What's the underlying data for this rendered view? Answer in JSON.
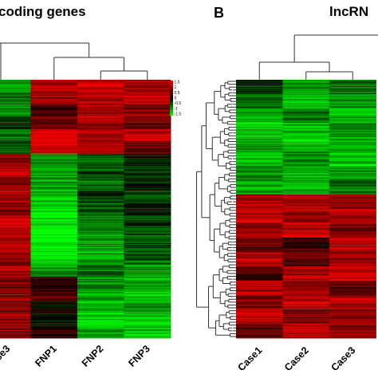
{
  "chart_data": [
    {
      "type": "heatmap",
      "title": "coding genes",
      "columns": [
        "se3",
        "FNP1",
        "FNP2",
        "FNP3"
      ],
      "legend": {
        "ticks": [
          "1.5",
          "1",
          "0.5",
          "0",
          "-0.5",
          "-1",
          "-1.5"
        ],
        "range": [
          -1.5,
          1.5
        ],
        "low_color": "#00ff00",
        "mid_color": "#000000",
        "high_color": "#ff0000"
      },
      "row_blocks": [
        {
          "values": [
            -0.9,
            1.1,
            1.2,
            0.9
          ]
        },
        {
          "values": [
            -0.6,
            0.9,
            1.0,
            1.1
          ]
        },
        {
          "values": [
            -0.8,
            0.4,
            1.1,
            0.8
          ]
        },
        {
          "values": [
            -0.3,
            0.6,
            0.9,
            0.6
          ]
        },
        {
          "values": [
            -0.7,
            1.3,
            1.0,
            1.2
          ]
        },
        {
          "values": [
            -0.5,
            1.2,
            1.1,
            0.7
          ]
        },
        {
          "values": [
            0.9,
            -0.8,
            -0.5,
            -0.2
          ]
        },
        {
          "values": [
            1.1,
            -1.0,
            -0.4,
            -0.3
          ]
        },
        {
          "values": [
            0.8,
            -0.9,
            -0.6,
            -0.1
          ]
        },
        {
          "values": [
            1.0,
            -1.1,
            -0.3,
            -0.4
          ]
        },
        {
          "values": [
            0.7,
            -1.3,
            -0.5,
            -0.2
          ]
        },
        {
          "values": [
            1.2,
            -1.4,
            -0.7,
            -0.3
          ]
        },
        {
          "values": [
            0.9,
            -1.5,
            -0.8,
            -0.5
          ]
        },
        {
          "values": [
            1.1,
            -1.5,
            -0.9,
            -0.4
          ]
        },
        {
          "values": [
            0.8,
            -1.4,
            -1.0,
            -0.6
          ]
        },
        {
          "values": [
            1.0,
            -0.9,
            -0.6,
            -0.9
          ]
        },
        {
          "values": [
            0.6,
            0.3,
            -0.8,
            -1.0
          ]
        },
        {
          "values": [
            0.9,
            0.5,
            -1.0,
            -1.1
          ]
        },
        {
          "values": [
            0.7,
            0.1,
            -1.1,
            -0.9
          ]
        },
        {
          "values": [
            1.0,
            -0.2,
            -1.2,
            -1.2
          ]
        },
        {
          "values": [
            0.8,
            0.3,
            -1.0,
            -1.1
          ]
        }
      ]
    },
    {
      "type": "heatmap",
      "title": "lncRN",
      "panel_label": "B",
      "columns": [
        "Case1",
        "Case2",
        "Case3"
      ],
      "legend": {
        "range": [
          -1.5,
          1.5
        ],
        "low_color": "#00ff00",
        "mid_color": "#000000",
        "high_color": "#ff0000"
      },
      "row_blocks": [
        {
          "values": [
            -0.2,
            -0.9,
            -0.6
          ]
        },
        {
          "values": [
            -0.6,
            -1.1,
            -0.9
          ]
        },
        {
          "values": [
            -1.0,
            -0.7,
            -1.1
          ]
        },
        {
          "values": [
            -1.2,
            -1.0,
            -0.8
          ]
        },
        {
          "values": [
            -0.9,
            -1.2,
            -1.0
          ]
        },
        {
          "values": [
            -1.1,
            -0.8,
            -1.2
          ]
        },
        {
          "values": [
            -0.8,
            -1.0,
            -0.9
          ]
        },
        {
          "values": [
            -1.0,
            -1.1,
            -0.7
          ]
        },
        {
          "values": [
            1.0,
            1.1,
            0.8
          ]
        },
        {
          "values": [
            1.2,
            0.9,
            1.0
          ]
        },
        {
          "values": [
            0.9,
            1.2,
            0.7
          ]
        },
        {
          "values": [
            0.7,
            0.4,
            1.1
          ]
        },
        {
          "values": [
            1.1,
            0.6,
            0.9
          ]
        },
        {
          "values": [
            0.4,
            1.0,
            1.2
          ]
        },
        {
          "values": [
            1.0,
            0.8,
            0.6
          ]
        },
        {
          "values": [
            0.8,
            1.1,
            1.0
          ]
        },
        {
          "values": [
            1.1,
            0.7,
            0.9
          ]
        },
        {
          "values": [
            0.6,
            1.0,
            0.8
          ]
        }
      ]
    }
  ]
}
